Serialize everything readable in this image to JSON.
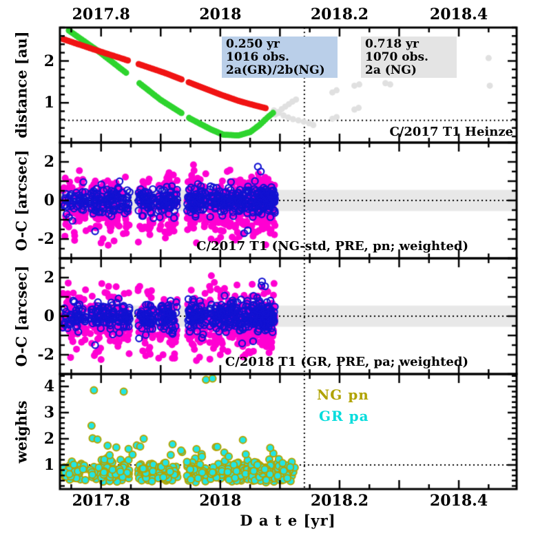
{
  "chart_data": {
    "type": "scatter",
    "xlabel": "D a t e [yr]",
    "x_domain": [
      2017.731,
      2018.497
    ],
    "x_ticks": {
      "minor_step": 0.05,
      "major_step": 0.1,
      "labels": [
        {
          "v": 2017.8,
          "t": "2017.8"
        },
        {
          "v": 2018.0,
          "t": "2018"
        },
        {
          "v": 2018.2,
          "t": "2018.2"
        },
        {
          "v": 2018.4,
          "t": "2018.4"
        }
      ]
    },
    "vline_x": 2018.141,
    "panels": [
      {
        "name": "distance",
        "ylabel": "distance [au]",
        "ylim": [
          0.05,
          2.8
        ],
        "y_ticks": {
          "minor_step": 0.2,
          "major_step": 1,
          "labels": [
            {
              "v": 1,
              "t": "1"
            },
            {
              "v": 2,
              "t": "2"
            }
          ]
        },
        "hline_y": 0.58,
        "annotation": "C/2017 T1 Heinze",
        "boxes": [
          {
            "bg": "#bacfe9",
            "lines": [
              "0.250 yr",
              "1016 obs.",
              "2a(GR)/2b(NG)"
            ]
          },
          {
            "bg": "#e4e4e4",
            "lines": [
              "0.718 yr",
              "1070 obs.",
              "2a (NG)"
            ]
          }
        ],
        "series": [
          {
            "name": "predicted-positions",
            "color": "#e0e0e0",
            "marker": "dot",
            "r": 4.5,
            "points": [
              [
                2018.092,
                0.72
              ],
              [
                2018.097,
                0.78
              ],
              [
                2018.103,
                0.85
              ],
              [
                2018.109,
                0.91
              ],
              [
                2018.115,
                0.97
              ],
              [
                2018.121,
                1.03
              ],
              [
                2018.127,
                1.08
              ],
              [
                2018.09,
                0.82
              ],
              [
                2018.098,
                0.76
              ],
              [
                2018.106,
                0.7
              ],
              [
                2018.114,
                0.65
              ],
              [
                2018.122,
                0.61
              ],
              [
                2018.131,
                0.58
              ],
              [
                2018.14,
                0.55
              ],
              [
                2018.149,
                0.51
              ],
              [
                2018.156,
                0.47
              ],
              [
                2018.188,
                1.25
              ],
              [
                2018.195,
                1.3
              ],
              [
                2018.225,
                1.41
              ],
              [
                2018.233,
                1.44
              ],
              [
                2018.188,
                0.62
              ],
              [
                2018.195,
                0.66
              ],
              [
                2018.225,
                0.84
              ],
              [
                2018.232,
                0.88
              ],
              [
                2018.277,
                1.47
              ],
              [
                2018.285,
                1.44
              ],
              [
                2018.45,
                2.07
              ],
              [
                2018.452,
                1.41
              ]
            ]
          },
          {
            "name": "geocentric-distance-observed",
            "color": "#2ed42e",
            "marker": "dot",
            "r": 4.5,
            "step": 0.0032,
            "path": [
              [
                2017.746,
                2.73
              ],
              [
                2017.795,
                2.24
              ],
              [
                2017.85,
                1.63
              ],
              [
                2017.9,
                1.07
              ],
              [
                2017.95,
                0.62
              ],
              [
                2017.985,
                0.36
              ],
              [
                2018.005,
                0.24
              ],
              [
                2018.03,
                0.22
              ],
              [
                2018.05,
                0.3
              ],
              [
                2018.065,
                0.46
              ],
              [
                2018.08,
                0.66
              ],
              [
                2018.09,
                0.78
              ]
            ],
            "gaps": [
              [
                2017.845,
                2017.862
              ],
              [
                2017.935,
                2017.945
              ]
            ]
          },
          {
            "name": "heliocentric-distance-observed",
            "color": "#f01414",
            "marker": "dot",
            "r": 4.5,
            "step": 0.003,
            "path": [
              [
                2017.737,
                2.52
              ],
              [
                2017.8,
                2.22
              ],
              [
                2017.85,
                1.99
              ],
              [
                2017.91,
                1.7
              ],
              [
                2017.96,
                1.42
              ],
              [
                2018.0,
                1.2
              ],
              [
                2018.03,
                1.05
              ],
              [
                2018.055,
                0.95
              ],
              [
                2018.077,
                0.87
              ]
            ],
            "gaps": [
              [
                2017.845,
                2017.862
              ],
              [
                2017.935,
                2017.945
              ]
            ]
          }
        ]
      },
      {
        "name": "oc-ng",
        "ylabel": "O-C [arcsec]",
        "ylim": [
          -3,
          3
        ],
        "y_ticks": {
          "minor_step": 0.5,
          "major_step": 1,
          "labels": [
            {
              "v": -2,
              "t": "-2"
            },
            {
              "v": 0,
              "t": "0"
            },
            {
              "v": 2,
              "t": "2"
            }
          ]
        },
        "band": [
          -0.55,
          0.55
        ],
        "band_color": "#e8e8e8",
        "hline_y": 0,
        "annotation": "C/2017 T1 (NG-std, PRE, pn; weighted)",
        "series": [
          {
            "name": "residuals-filled",
            "color": "#ff00d2",
            "marker": "dot",
            "r": 5,
            "seed": 101,
            "mean": -0.25,
            "sigma": 0.78,
            "clip": [
              -2.35,
              1.75
            ],
            "clusters": [
              [
                2017.735,
                2017.775,
                55
              ],
              [
                2017.782,
                2017.848,
                115
              ],
              [
                2017.862,
                2017.888,
                55
              ],
              [
                2017.896,
                2017.928,
                75
              ],
              [
                2017.944,
                2017.976,
                75
              ],
              [
                2017.982,
                2018.048,
                150
              ],
              [
                2018.052,
                2018.092,
                160
              ]
            ],
            "outliers": [
              [
                2017.955,
                1.85
              ],
              [
                2017.956,
                1.55
              ],
              [
                2017.952,
                1.3
              ],
              [
                2017.8,
                -2.2
              ],
              [
                2017.812,
                -2.32
              ],
              [
                2017.96,
                -2.2
              ],
              [
                2017.995,
                -2.1
              ],
              [
                2018.02,
                -1.9
              ],
              [
                2018.055,
                -1.85
              ],
              [
                2018.075,
                1.2
              ]
            ]
          },
          {
            "name": "residuals-open",
            "color": "#1212d2",
            "marker": "ring",
            "r": 4.6,
            "lw": 2.2,
            "seed": 102,
            "mean": -0.02,
            "sigma": 0.36,
            "clip": [
              -1.8,
              1.8
            ],
            "clusters": [
              [
                2017.735,
                2017.775,
                47
              ],
              [
                2017.782,
                2017.848,
                98
              ],
              [
                2017.862,
                2017.888,
                47
              ],
              [
                2017.896,
                2017.928,
                64
              ],
              [
                2017.944,
                2017.976,
                64
              ],
              [
                2017.982,
                2018.048,
                128
              ],
              [
                2018.052,
                2018.092,
                136
              ]
            ],
            "outliers": [
              [
                2018.063,
                1.75
              ],
              [
                2018.068,
                1.5
              ],
              [
                2017.752,
                -1.05
              ],
              [
                2018.04,
                -1.7
              ],
              [
                2018.046,
                -1.55
              ],
              [
                2017.79,
                -1.6
              ]
            ]
          }
        ]
      },
      {
        "name": "oc-gr",
        "ylabel": "O-C [arcsec]",
        "ylim": [
          -3,
          3
        ],
        "y_ticks": {
          "minor_step": 0.5,
          "major_step": 1,
          "labels": [
            {
              "v": -2,
              "t": "-2"
            },
            {
              "v": 0,
              "t": "0"
            },
            {
              "v": 2,
              "t": "2"
            }
          ]
        },
        "band": [
          -0.55,
          0.55
        ],
        "band_color": "#e8e8e8",
        "hline_y": 0,
        "annotation": "C/2018 T1 (GR, PRE, pa; weighted)",
        "series": [
          {
            "name": "residuals-filled",
            "color": "#ff00d2",
            "marker": "dot",
            "r": 5,
            "seed": 201,
            "mean": -0.2,
            "sigma": 0.8,
            "clip": [
              -2.35,
              1.75
            ],
            "clusters": [
              [
                2017.735,
                2017.775,
                55
              ],
              [
                2017.782,
                2017.848,
                115
              ],
              [
                2017.862,
                2017.888,
                55
              ],
              [
                2017.896,
                2017.928,
                75
              ],
              [
                2017.944,
                2017.976,
                75
              ],
              [
                2017.982,
                2018.048,
                150
              ],
              [
                2018.052,
                2018.092,
                160
              ]
            ],
            "outliers": [
              [
                2017.985,
                2.1
              ],
              [
                2017.99,
                1.75
              ],
              [
                2017.8,
                -2.25
              ],
              [
                2017.96,
                -2.3
              ],
              [
                2018.0,
                -2.0
              ],
              [
                2018.05,
                -1.9
              ],
              [
                2017.87,
                -1.8
              ],
              [
                2018.07,
                1.5
              ]
            ]
          },
          {
            "name": "residuals-open",
            "color": "#1212d2",
            "marker": "ring",
            "r": 4.6,
            "lw": 2.2,
            "seed": 202,
            "mean": 0.0,
            "sigma": 0.38,
            "clip": [
              -1.8,
              1.8
            ],
            "clusters": [
              [
                2017.735,
                2017.775,
                47
              ],
              [
                2017.782,
                2017.848,
                98
              ],
              [
                2017.862,
                2017.888,
                47
              ],
              [
                2017.896,
                2017.928,
                64
              ],
              [
                2017.944,
                2017.976,
                64
              ],
              [
                2017.982,
                2018.048,
                128
              ],
              [
                2018.052,
                2018.092,
                136
              ]
            ],
            "outliers": [
              [
                2018.07,
                1.8
              ],
              [
                2018.075,
                1.55
              ],
              [
                2017.79,
                -1.5
              ],
              [
                2018.055,
                -1.3
              ]
            ]
          }
        ]
      },
      {
        "name": "weights",
        "ylabel": "weights",
        "ylim": [
          0.08,
          4.47
        ],
        "y_ticks": {
          "minor_step": 0.2,
          "major_step": 1,
          "labels": [
            {
              "v": 1,
              "t": "1"
            },
            {
              "v": 2,
              "t": "2"
            },
            {
              "v": 3,
              "t": "3"
            },
            {
              "v": 4,
              "t": "4"
            }
          ]
        },
        "hline_y": 1,
        "legend": [
          {
            "label": "NG pn",
            "color": "#b0a300"
          },
          {
            "label": "GR pa",
            "color": "#00dcdc"
          }
        ],
        "series": [
          {
            "name": "weights-points",
            "fill": "#20e6e6",
            "stroke": "#b4a400",
            "marker": "dot-stroked",
            "r": 5,
            "lw": 2,
            "seed": 301,
            "mean": 0.74,
            "sigma": 0.21,
            "clip": [
              0.33,
              1.3
            ],
            "clusters": [
              [
                2017.735,
                2017.775,
                40
              ],
              [
                2017.782,
                2017.848,
                85
              ],
              [
                2017.862,
                2017.888,
                40
              ],
              [
                2017.896,
                2017.928,
                55
              ],
              [
                2017.944,
                2017.976,
                55
              ],
              [
                2017.982,
                2018.048,
                110
              ],
              [
                2018.052,
                2018.092,
                115
              ],
              [
                2018.096,
                2018.126,
                45
              ]
            ],
            "tail": {
              "n": 24,
              "x_range": [
                2017.78,
                2018.09
              ],
              "y_range": [
                1.3,
                2.08
              ]
            },
            "outliers": [
              [
                2017.788,
                3.85
              ],
              [
                2017.838,
                3.8
              ],
              [
                2017.784,
                2.5
              ],
              [
                2017.794,
                1.97
              ],
              [
                2017.976,
                4.25
              ],
              [
                2017.987,
                4.3
              ]
            ]
          }
        ]
      }
    ]
  }
}
